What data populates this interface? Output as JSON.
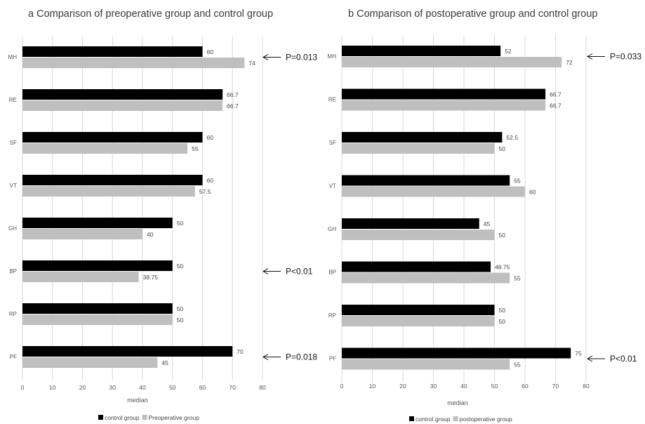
{
  "colors": {
    "control": "#000000",
    "comparison": "#bfbfbf",
    "grid": "#d9d9d9"
  },
  "chart_data": [
    {
      "type": "bar",
      "orientation": "horizontal",
      "title": "a   Comparison of preoperative group and control group",
      "xlabel": "median",
      "xlim": [
        0,
        80
      ],
      "xticks": [
        0,
        10,
        20,
        30,
        40,
        50,
        60,
        70,
        80
      ],
      "grid": true,
      "legend": "bottom",
      "categories": [
        "MH",
        "RE",
        "SF",
        "VT",
        "GH",
        "BP",
        "RP",
        "PF"
      ],
      "series": [
        {
          "name": "control group",
          "values": [
            60,
            66.7,
            60,
            60,
            50,
            50,
            50,
            70
          ],
          "labels": [
            "60",
            "66.7",
            "60",
            "60",
            "50",
            "50",
            "50",
            "70"
          ]
        },
        {
          "name": "Preoperative group",
          "values": [
            74,
            66.7,
            55,
            57.5,
            40,
            38.75,
            50,
            45
          ],
          "labels": [
            "74",
            "66.7",
            "55",
            "57.5",
            "40",
            "38.75",
            "50",
            "45"
          ]
        }
      ],
      "annotations": [
        {
          "category": "MH",
          "text": "P=0.013"
        },
        {
          "category": "BP",
          "text": "P<0.01"
        },
        {
          "category": "PF",
          "text": "P=0.018"
        }
      ]
    },
    {
      "type": "bar",
      "orientation": "horizontal",
      "title": "b   Comparison of postoperative group and control group",
      "xlabel": "median",
      "xlim": [
        0,
        80
      ],
      "xticks": [
        0,
        10,
        20,
        30,
        40,
        50,
        60,
        70,
        80
      ],
      "grid": true,
      "legend": "bottom",
      "categories": [
        "MH",
        "RE",
        "SF",
        "VT",
        "GH",
        "BP",
        "RP",
        "PF"
      ],
      "series": [
        {
          "name": "control group",
          "values": [
            52,
            66.7,
            52.5,
            55,
            45,
            48.75,
            50,
            75
          ],
          "labels": [
            "52",
            "66.7",
            "52.5",
            "55",
            "45",
            "48.75",
            "50",
            "75"
          ]
        },
        {
          "name": "postoperative group",
          "values": [
            72,
            66.7,
            50,
            60,
            50,
            55,
            50,
            55
          ],
          "labels": [
            "72",
            "66.7",
            "50",
            "60",
            "50",
            "55",
            "50",
            "55"
          ]
        }
      ],
      "annotations": [
        {
          "category": "MH",
          "text": "P=0.033"
        },
        {
          "category": "PF",
          "text": "P<0.01"
        }
      ]
    }
  ]
}
